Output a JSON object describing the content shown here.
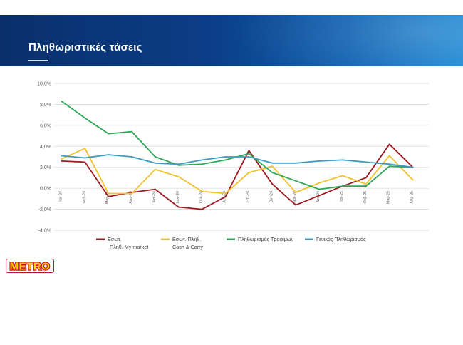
{
  "slide": {
    "title": "Πληθωριστικές τάσεις"
  },
  "logo": {
    "text": "METRO",
    "colors": {
      "red": "#c8102e",
      "yellow": "#ffd200"
    }
  },
  "colors": {
    "band_start": "#0a2f6b",
    "band_end": "#1e88d3",
    "grid": "#d9d9d9",
    "axis_text": "#595959"
  },
  "chart_data": {
    "type": "line",
    "title": "",
    "xlabel": "",
    "ylabel": "",
    "ylim": [
      -4.0,
      10.0
    ],
    "y_ticks": [
      "10,0%",
      "8,0%",
      "6,0%",
      "4,0%",
      "2,0%",
      "0,0%",
      "-2,0%",
      "-4,0%"
    ],
    "y_tick_values": [
      10,
      8,
      6,
      4,
      2,
      0,
      -2,
      -4
    ],
    "categories": [
      "Ιαν-24",
      "Φεβ-24",
      "Μαρ-24",
      "Απρ-24",
      "Μαϊ-24",
      "Ιουν-24",
      "Ιουλ-24",
      "Αυγ-24",
      "Σεπ-24",
      "Οκτ-24",
      "Νοε-24",
      "Δεκ-24",
      "Ιαν-25",
      "Φεβ-25",
      "Μαρ-25",
      "Απρ-25"
    ],
    "grid": true,
    "legend_position": "bottom",
    "series": [
      {
        "name_lines": [
          "Εσωτ.",
          "Πληθ. My market"
        ],
        "color": "#9b1b1f",
        "values": [
          2.6,
          2.5,
          -0.8,
          -0.4,
          -0.1,
          -1.8,
          -2.0,
          -0.8,
          3.6,
          0.4,
          -1.6,
          -0.7,
          0.2,
          1.0,
          4.2,
          2.0
        ]
      },
      {
        "name_lines": [
          "Εσωτ. Πληθ.",
          "Cash & Carry"
        ],
        "color": "#f2c12e",
        "values": [
          2.8,
          3.8,
          -0.5,
          -0.5,
          1.8,
          1.1,
          -0.3,
          -0.5,
          1.5,
          2.1,
          -0.4,
          0.5,
          1.2,
          0.4,
          3.1,
          0.8
        ]
      },
      {
        "name_lines": [
          "Πληθωρισμός Τροφίμων"
        ],
        "color": "#2ea858",
        "values": [
          8.3,
          6.7,
          5.2,
          5.4,
          3.0,
          2.2,
          2.3,
          2.7,
          3.3,
          1.5,
          0.7,
          -0.1,
          0.2,
          0.2,
          2.1,
          2.0
        ]
      },
      {
        "name_lines": [
          "Γενικός Πληθωρισμός"
        ],
        "color": "#3b9ac0",
        "values": [
          3.1,
          2.9,
          3.2,
          3.0,
          2.4,
          2.3,
          2.7,
          3.0,
          3.0,
          2.4,
          2.4,
          2.6,
          2.7,
          2.5,
          2.3,
          2.0
        ]
      }
    ]
  }
}
